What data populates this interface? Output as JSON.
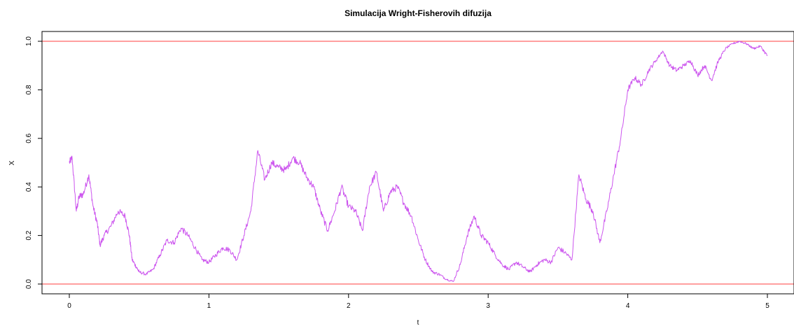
{
  "chart_data": {
    "type": "line",
    "title": "Simulacija Wright-Fisherovih difuzija",
    "xlabel": "t",
    "ylabel": "X",
    "xlim": [
      0,
      5
    ],
    "ylim": [
      0,
      1
    ],
    "x_ticks": [
      "0",
      "1",
      "2",
      "3",
      "4",
      "5"
    ],
    "y_ticks": [
      "0.0",
      "0.2",
      "0.4",
      "0.6",
      "0.8",
      "1.0"
    ],
    "grid": false,
    "legend": "none",
    "reference_lines": [
      {
        "axis": "y",
        "value": 0,
        "color": "#ff6666"
      },
      {
        "axis": "y",
        "value": 1,
        "color": "#ff6666"
      }
    ],
    "series": [
      {
        "color": "#cc55ee",
        "x": [
          0,
          0.02,
          0.05,
          0.07,
          0.1,
          0.14,
          0.17,
          0.2,
          0.22,
          0.25,
          0.3,
          0.35,
          0.4,
          0.43,
          0.45,
          0.48,
          0.5,
          0.55,
          0.6,
          0.65,
          0.7,
          0.75,
          0.8,
          0.85,
          0.9,
          0.95,
          1.0,
          1.05,
          1.1,
          1.15,
          1.2,
          1.25,
          1.3,
          1.35,
          1.4,
          1.45,
          1.5,
          1.55,
          1.6,
          1.65,
          1.7,
          1.75,
          1.8,
          1.85,
          1.9,
          1.95,
          2.0,
          2.05,
          2.1,
          2.15,
          2.2,
          2.25,
          2.3,
          2.35,
          2.4,
          2.45,
          2.5,
          2.55,
          2.6,
          2.65,
          2.7,
          2.75,
          2.8,
          2.85,
          2.9,
          2.95,
          3.0,
          3.05,
          3.1,
          3.15,
          3.2,
          3.25,
          3.3,
          3.35,
          3.4,
          3.45,
          3.5,
          3.55,
          3.6,
          3.65,
          3.7,
          3.75,
          3.8,
          3.85,
          3.9,
          3.95,
          4.0,
          4.05,
          4.1,
          4.15,
          4.2,
          4.25,
          4.3,
          4.35,
          4.4,
          4.45,
          4.5,
          4.55,
          4.6,
          4.65,
          4.7,
          4.75,
          4.8,
          4.85,
          4.9,
          4.95,
          5.0
        ],
        "y": [
          0.5,
          0.52,
          0.3,
          0.36,
          0.37,
          0.45,
          0.32,
          0.25,
          0.16,
          0.2,
          0.24,
          0.3,
          0.28,
          0.2,
          0.1,
          0.07,
          0.05,
          0.04,
          0.06,
          0.12,
          0.18,
          0.17,
          0.23,
          0.2,
          0.15,
          0.1,
          0.09,
          0.12,
          0.15,
          0.14,
          0.1,
          0.2,
          0.3,
          0.55,
          0.43,
          0.5,
          0.48,
          0.47,
          0.52,
          0.5,
          0.44,
          0.4,
          0.3,
          0.22,
          0.3,
          0.4,
          0.32,
          0.3,
          0.22,
          0.4,
          0.46,
          0.3,
          0.38,
          0.4,
          0.33,
          0.28,
          0.18,
          0.1,
          0.05,
          0.04,
          0.02,
          0.01,
          0.08,
          0.2,
          0.28,
          0.2,
          0.17,
          0.12,
          0.08,
          0.06,
          0.09,
          0.07,
          0.05,
          0.08,
          0.1,
          0.09,
          0.15,
          0.13,
          0.1,
          0.45,
          0.35,
          0.3,
          0.17,
          0.3,
          0.45,
          0.6,
          0.8,
          0.85,
          0.82,
          0.88,
          0.92,
          0.96,
          0.9,
          0.88,
          0.9,
          0.92,
          0.86,
          0.9,
          0.84,
          0.92,
          0.97,
          0.99,
          1.0,
          0.99,
          0.97,
          0.98,
          0.94
        ]
      }
    ]
  }
}
